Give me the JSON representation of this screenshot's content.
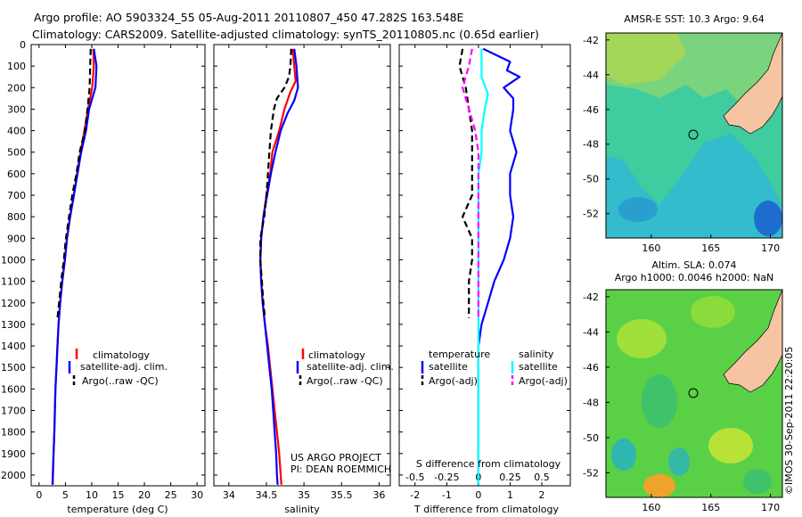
{
  "header": {
    "line1": "Argo profile: AO 5903324_55 05-Aug-2011 20110807_450 47.282S 163.548E",
    "line2": "Climatology: CARS2009. Satellite-adjusted climatology: synTS_20110805.nc (0.65d earlier)"
  },
  "depth_ticks": [
    "0",
    "100",
    "200",
    "300",
    "400",
    "500",
    "600",
    "700",
    "800",
    "900",
    "1000",
    "1100",
    "1200",
    "1300",
    "1400",
    "1500",
    "1600",
    "1700",
    "1800",
    "1900",
    "2000"
  ],
  "colors": {
    "red": "#ff0000",
    "blue": "#0000ff",
    "black": "#000000",
    "cyan": "#00ffff",
    "magenta": "#ff00ff"
  },
  "legend_labels": {
    "clim": "climatology",
    "sat": "satellite-adj. clim.",
    "argo": "Argo(..raw -QC)"
  },
  "diff_legend": {
    "t_title": "temperature",
    "s_title": "salinity",
    "sat": "satellite",
    "argo": "Argo(-adj)"
  },
  "project_note": {
    "line1": "US ARGO PROJECT",
    "line2": "PI: DEAN ROEMMICH"
  },
  "maps": {
    "sst_title": "AMSR-E SST: 10.3 Argo: 9.64",
    "sla_title1": "Altim. SLA: 0.074",
    "sla_title2": "Argo h1000: 0.0046 h2000: NaN",
    "lat_ticks": [
      "-42",
      "-44",
      "-46",
      "-48",
      "-50",
      "-52"
    ],
    "lon_ticks": [
      "160",
      "165",
      "170"
    ],
    "float_position": {
      "lon": 163.548,
      "lat": -47.282
    }
  },
  "credit": "©IMOS 30-Sep-2011 22:20:05",
  "chart_data": [
    {
      "type": "line",
      "xlabel": "temperature (deg C)",
      "xticks": [
        "0",
        "5",
        "10",
        "15",
        "20",
        "25",
        "30"
      ],
      "xlim": [
        -1.5,
        31.5
      ],
      "ylim": [
        0,
        2050
      ],
      "y_direction": "down",
      "series": [
        {
          "name": "climatology",
          "color": "red",
          "dash": false,
          "points": [
            [
              10.3,
              20
            ],
            [
              10.4,
              100
            ],
            [
              10.1,
              200
            ],
            [
              9.3,
              300
            ],
            [
              8.6,
              400
            ],
            [
              7.9,
              500
            ],
            [
              7.2,
              600
            ],
            [
              6.6,
              700
            ],
            [
              5.9,
              800
            ],
            [
              5.3,
              900
            ],
            [
              4.9,
              1000
            ],
            [
              4.4,
              1100
            ],
            [
              4.0,
              1200
            ],
            [
              3.7,
              1300
            ],
            [
              3.5,
              1400
            ],
            [
              3.3,
              1500
            ],
            [
              3.1,
              1600
            ],
            [
              3.0,
              1700
            ],
            [
              2.9,
              1800
            ],
            [
              2.75,
              1900
            ],
            [
              2.65,
              2000
            ],
            [
              2.6,
              2045
            ]
          ]
        },
        {
          "name": "satellite-adj. clim.",
          "color": "blue",
          "dash": false,
          "points": [
            [
              10.4,
              20
            ],
            [
              10.9,
              100
            ],
            [
              10.7,
              200
            ],
            [
              10.1,
              250
            ],
            [
              9.5,
              300
            ],
            [
              8.9,
              400
            ],
            [
              8.0,
              500
            ],
            [
              7.3,
              600
            ],
            [
              6.6,
              700
            ],
            [
              5.9,
              800
            ],
            [
              5.3,
              900
            ],
            [
              4.9,
              1000
            ],
            [
              4.4,
              1100
            ],
            [
              4.0,
              1200
            ],
            [
              3.7,
              1300
            ],
            [
              3.5,
              1400
            ],
            [
              3.3,
              1500
            ],
            [
              3.1,
              1600
            ],
            [
              3.0,
              1700
            ],
            [
              2.9,
              1800
            ],
            [
              2.75,
              1900
            ],
            [
              2.6,
              2000
            ],
            [
              2.55,
              2045
            ]
          ]
        },
        {
          "name": "Argo(..raw -QC)",
          "color": "black",
          "dash": true,
          "points": [
            [
              9.8,
              20
            ],
            [
              9.7,
              100
            ],
            [
              9.6,
              200
            ],
            [
              9.2,
              300
            ],
            [
              8.7,
              400
            ],
            [
              7.7,
              500
            ],
            [
              7.1,
              600
            ],
            [
              6.3,
              700
            ],
            [
              5.7,
              800
            ],
            [
              5.1,
              900
            ],
            [
              4.7,
              1000
            ],
            [
              4.2,
              1100
            ],
            [
              3.8,
              1200
            ],
            [
              3.5,
              1270
            ]
          ]
        }
      ]
    },
    {
      "type": "line",
      "xlabel": "salinity",
      "xticks": [
        "34",
        "34.5",
        "35",
        "35.5",
        "36"
      ],
      "xlim": [
        33.8,
        36.15
      ],
      "ylim": [
        0,
        2050
      ],
      "y_direction": "down",
      "series": [
        {
          "name": "climatology",
          "color": "red",
          "dash": false,
          "points": [
            [
              34.85,
              20
            ],
            [
              34.87,
              100
            ],
            [
              34.89,
              170
            ],
            [
              34.82,
              220
            ],
            [
              34.74,
              300
            ],
            [
              34.67,
              400
            ],
            [
              34.58,
              500
            ],
            [
              34.55,
              600
            ],
            [
              34.5,
              700
            ],
            [
              34.46,
              800
            ],
            [
              34.43,
              900
            ],
            [
              34.42,
              1000
            ],
            [
              34.43,
              1100
            ],
            [
              34.45,
              1200
            ],
            [
              34.48,
              1300
            ],
            [
              34.52,
              1400
            ],
            [
              34.55,
              1500
            ],
            [
              34.58,
              1600
            ],
            [
              34.61,
              1700
            ],
            [
              34.64,
              1800
            ],
            [
              34.67,
              1900
            ],
            [
              34.69,
              2000
            ],
            [
              34.7,
              2045
            ]
          ]
        },
        {
          "name": "satellite-adj. clim.",
          "color": "blue",
          "dash": false,
          "points": [
            [
              34.87,
              20
            ],
            [
              34.9,
              100
            ],
            [
              34.92,
              200
            ],
            [
              34.87,
              260
            ],
            [
              34.78,
              320
            ],
            [
              34.69,
              400
            ],
            [
              34.62,
              500
            ],
            [
              34.56,
              600
            ],
            [
              34.51,
              700
            ],
            [
              34.46,
              800
            ],
            [
              34.43,
              900
            ],
            [
              34.42,
              1000
            ],
            [
              34.43,
              1100
            ],
            [
              34.45,
              1200
            ],
            [
              34.48,
              1300
            ],
            [
              34.51,
              1400
            ],
            [
              34.54,
              1500
            ],
            [
              34.57,
              1600
            ],
            [
              34.59,
              1700
            ],
            [
              34.61,
              1800
            ],
            [
              34.63,
              1900
            ],
            [
              34.64,
              2000
            ],
            [
              34.65,
              2045
            ]
          ]
        },
        {
          "name": "Argo(..raw -QC)",
          "color": "black",
          "dash": true,
          "points": [
            [
              34.83,
              20
            ],
            [
              34.82,
              100
            ],
            [
              34.8,
              150
            ],
            [
              34.74,
              200
            ],
            [
              34.64,
              250
            ],
            [
              34.6,
              300
            ],
            [
              34.56,
              400
            ],
            [
              34.54,
              500
            ],
            [
              34.52,
              600
            ],
            [
              34.5,
              700
            ],
            [
              34.47,
              800
            ],
            [
              34.42,
              900
            ],
            [
              34.42,
              1000
            ],
            [
              34.44,
              1100
            ],
            [
              34.46,
              1200
            ],
            [
              34.48,
              1270
            ]
          ]
        }
      ]
    },
    {
      "type": "line",
      "xlabel": "T difference from climatology",
      "xticks": [
        "-2",
        "-1",
        "0",
        "1",
        "2"
      ],
      "xlim": [
        -2.5,
        2.9
      ],
      "top_axis_label": "S difference from climatology",
      "top_ticks": [
        "-0.5",
        "-0.25",
        "0",
        "0.25",
        "0.5"
      ],
      "top_tick_values_in_T_units": [
        -2,
        -1,
        0,
        1,
        2
      ],
      "ylim": [
        0,
        2050
      ],
      "y_direction": "down",
      "series": [
        {
          "name": "temperature satellite",
          "color": "blue",
          "dash": false,
          "points": [
            [
              0.15,
              20
            ],
            [
              1.0,
              80
            ],
            [
              0.9,
              120
            ],
            [
              1.3,
              150
            ],
            [
              0.8,
              200
            ],
            [
              1.1,
              250
            ],
            [
              1.1,
              300
            ],
            [
              1.0,
              400
            ],
            [
              1.2,
              500
            ],
            [
              1.0,
              600
            ],
            [
              1.0,
              700
            ],
            [
              1.1,
              800
            ],
            [
              1.0,
              900
            ],
            [
              0.8,
              1000
            ],
            [
              0.5,
              1100
            ],
            [
              0.3,
              1200
            ],
            [
              0.1,
              1300
            ],
            [
              0.0,
              1400
            ],
            [
              0.0,
              2045
            ]
          ]
        },
        {
          "name": "salinity satellite",
          "color": "cyan",
          "dash": false,
          "points": [
            [
              0.1,
              20
            ],
            [
              0.1,
              80
            ],
            [
              0.1,
              150
            ],
            [
              0.3,
              230
            ],
            [
              0.2,
              300
            ],
            [
              0.1,
              400
            ],
            [
              0.1,
              500
            ],
            [
              0.0,
              600
            ],
            [
              0.0,
              2045
            ]
          ]
        },
        {
          "name": "temperature Argo(-adj)",
          "color": "black",
          "dash": true,
          "points": [
            [
              -0.5,
              20
            ],
            [
              -0.6,
              100
            ],
            [
              -0.4,
              200
            ],
            [
              -0.3,
              300
            ],
            [
              -0.2,
              400
            ],
            [
              -0.2,
              500
            ],
            [
              -0.2,
              600
            ],
            [
              -0.2,
              700
            ],
            [
              -0.5,
              800
            ],
            [
              -0.2,
              900
            ],
            [
              -0.2,
              1000
            ],
            [
              -0.3,
              1100
            ],
            [
              -0.3,
              1200
            ],
            [
              -0.3,
              1270
            ]
          ]
        },
        {
          "name": "salinity Argo(-adj)",
          "color": "magenta",
          "dash": true,
          "points": [
            [
              -0.2,
              20
            ],
            [
              -0.3,
              100
            ],
            [
              -0.5,
              200
            ],
            [
              -0.3,
              300
            ],
            [
              -0.1,
              400
            ],
            [
              0.0,
              500
            ],
            [
              0.0,
              600
            ],
            [
              0.0,
              700
            ],
            [
              0.0,
              800
            ],
            [
              0.0,
              900
            ],
            [
              0.0,
              1000
            ],
            [
              0.0,
              1270
            ]
          ]
        }
      ]
    }
  ]
}
